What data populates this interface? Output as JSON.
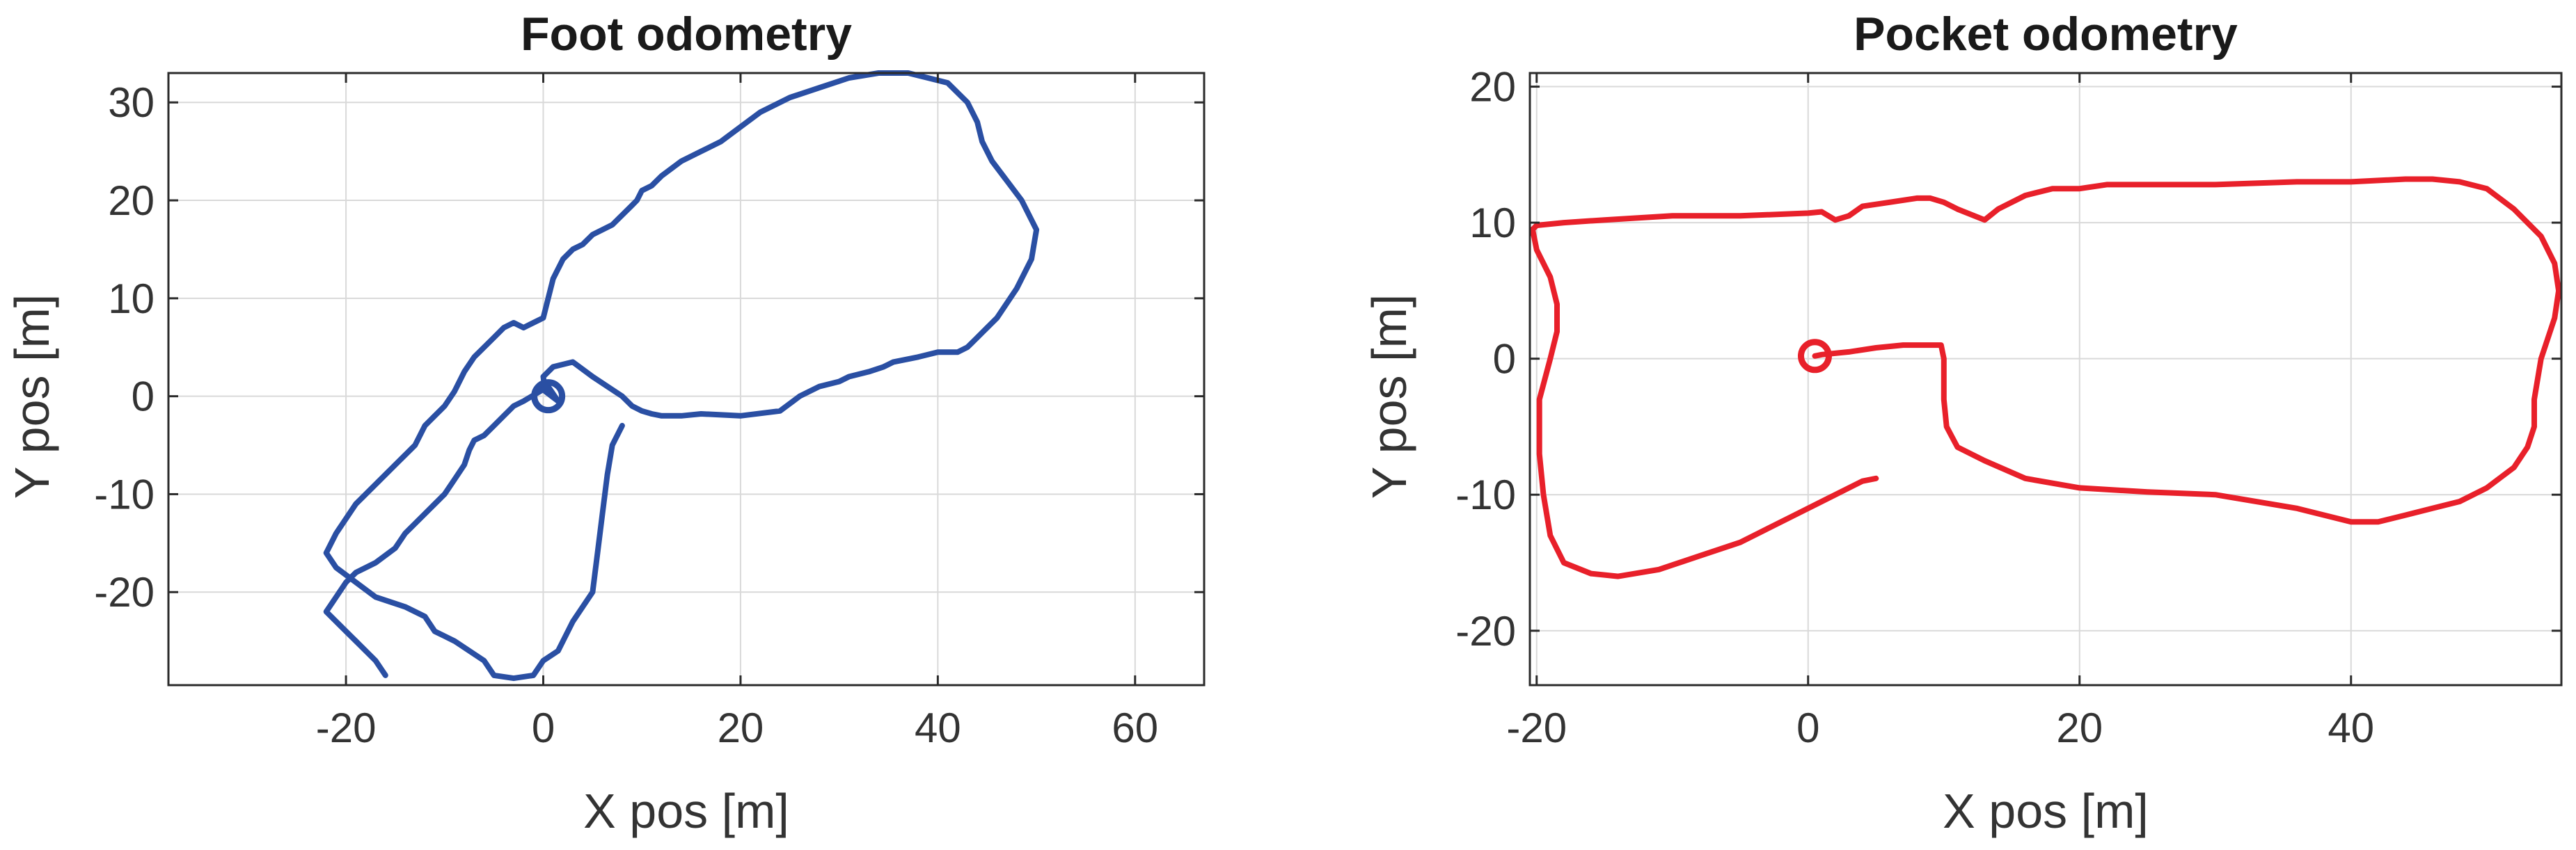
{
  "chart_data": [
    {
      "type": "line",
      "title": "Foot odometry",
      "xlabel": "X pos [m]",
      "ylabel": "Y pos [m]",
      "xlim": [
        -38,
        67
      ],
      "ylim": [
        -29.5,
        33
      ],
      "xticks": [
        -20,
        0,
        20,
        40,
        60
      ],
      "yticks": [
        -20,
        -10,
        0,
        10,
        20,
        30
      ],
      "grid": true,
      "color": "#2a4fa3",
      "start_marker": {
        "x": 0.5,
        "y": 0
      },
      "series": [
        {
          "x": [
            8,
            7,
            6.5,
            6,
            5.5,
            5,
            3,
            1.5,
            0,
            -1,
            -3,
            -5,
            -6,
            -9,
            -11,
            -12,
            -14,
            -17,
            -19,
            -21,
            -22,
            -21,
            -19,
            -17,
            -15,
            -13,
            -12,
            -11,
            -10,
            -9,
            -8,
            -7,
            -5,
            -4,
            -3,
            -2,
            -1,
            0,
            0.5,
            1,
            1.5,
            2,
            3,
            4,
            5,
            7,
            8,
            9,
            9.5,
            10,
            11,
            12,
            14,
            16,
            18,
            20,
            22,
            25,
            28,
            31,
            34,
            37,
            39,
            41,
            43,
            44,
            44.5,
            45.5,
            47,
            48.5,
            50,
            49.5,
            48,
            46,
            45,
            44,
            43,
            42,
            40,
            38,
            35.5,
            34.5,
            33,
            31,
            30,
            28,
            26,
            24,
            20,
            16,
            14,
            12,
            11,
            10,
            9,
            8,
            5,
            3,
            1,
            0,
            0.2,
            1.5,
            0.5,
            -2,
            -3,
            -4,
            -5,
            -6,
            -7,
            -7.5,
            -8,
            -9,
            -10,
            -11,
            -12,
            -13,
            -14,
            -15,
            -17,
            -19,
            -20,
            -21,
            -22,
            -21,
            -20,
            -19,
            -18,
            -17,
            -16
          ],
          "y": [
            -3,
            -5,
            -8,
            -12,
            -16,
            -20,
            -23,
            -26,
            -27,
            -28.5,
            -28.8,
            -28.5,
            -27,
            -25,
            -24,
            -22.5,
            -21.5,
            -20.5,
            -19,
            -17.5,
            -16,
            -14,
            -11,
            -9,
            -7,
            -5,
            -3,
            -2,
            -1,
            0.5,
            2.5,
            4,
            6,
            7,
            7.5,
            7,
            7.5,
            8,
            10,
            12,
            13,
            14,
            15,
            15.5,
            16.5,
            17.5,
            18.5,
            19.5,
            20,
            21,
            21.5,
            22.5,
            24,
            25,
            26,
            27.5,
            29,
            30.5,
            31.5,
            32.5,
            33,
            33,
            32.5,
            32,
            30,
            28,
            26,
            24,
            22,
            20,
            17,
            14,
            11,
            8,
            7,
            6,
            5,
            4.5,
            4.5,
            4,
            3.5,
            3,
            2.5,
            2,
            1.5,
            1,
            0,
            -1.5,
            -2,
            -1.8,
            -2,
            -2,
            -1.8,
            -1.5,
            -1,
            0,
            2,
            3.5,
            3,
            2,
            0.5,
            -0.5,
            1,
            -0.5,
            -1,
            -2,
            -3,
            -4,
            -4.5,
            -5.5,
            -7,
            -8.5,
            -10,
            -11,
            -12,
            -13,
            -14,
            -15.5,
            -17,
            -18,
            -19,
            -20.5,
            -22,
            -23,
            -24,
            -25,
            -26,
            -27,
            -28.5
          ]
        }
      ]
    },
    {
      "type": "line",
      "title": "Pocket odometry",
      "xlabel": "X pos [m]",
      "ylabel": "Y pos [m]",
      "xlim": [
        -20.5,
        55.5
      ],
      "ylim": [
        -24,
        21
      ],
      "xticks": [
        -20,
        0,
        20,
        40
      ],
      "yticks": [
        -20,
        -10,
        0,
        10,
        20
      ],
      "grid": true,
      "color": "#e8202a",
      "start_marker": {
        "x": 0.5,
        "y": 0.2
      },
      "series": [
        {
          "x": [
            5,
            4,
            3,
            1,
            -1,
            -3,
            -5,
            -8,
            -11,
            -14,
            -16,
            -18,
            -19,
            -19.5,
            -19.8,
            -19.8,
            -19,
            -18.5,
            -18.5,
            -19,
            -20,
            -20.3,
            -20,
            -18,
            -15,
            -10,
            -5,
            0,
            1,
            2,
            3,
            4,
            6,
            8,
            9,
            10,
            11,
            13,
            14,
            16,
            18,
            20,
            22,
            26,
            30,
            36,
            40,
            44,
            46,
            48,
            50,
            52,
            54,
            55,
            55.3,
            55,
            54,
            53.5,
            53.5,
            53,
            52,
            50,
            48,
            46,
            44,
            42,
            40,
            36,
            30,
            25,
            20,
            16,
            13,
            11,
            10.2,
            10,
            10,
            9.8,
            9,
            7,
            5,
            3,
            1,
            0.5
          ],
          "y": [
            -8.8,
            -9,
            -9.5,
            -10.5,
            -11.5,
            -12.5,
            -13.5,
            -14.5,
            -15.5,
            -16,
            -15.8,
            -15,
            -13,
            -10,
            -7,
            -3,
            0,
            2,
            4,
            6,
            8,
            9.5,
            9.8,
            10,
            10.2,
            10.5,
            10.5,
            10.7,
            10.8,
            10.2,
            10.5,
            11.2,
            11.5,
            11.8,
            11.8,
            11.5,
            11,
            10.2,
            11,
            12,
            12.5,
            12.5,
            12.8,
            12.8,
            12.8,
            13,
            13,
            13.2,
            13.2,
            13,
            12.5,
            11,
            9,
            7,
            5,
            3,
            0,
            -3,
            -5,
            -6.5,
            -8,
            -9.5,
            -10.5,
            -11,
            -11.5,
            -12,
            -12,
            -11,
            -10,
            -9.8,
            -9.5,
            -8.8,
            -7.5,
            -6.5,
            -5,
            -3,
            0,
            1,
            1,
            1,
            0.8,
            0.5,
            0.3,
            0.2
          ]
        }
      ]
    }
  ]
}
